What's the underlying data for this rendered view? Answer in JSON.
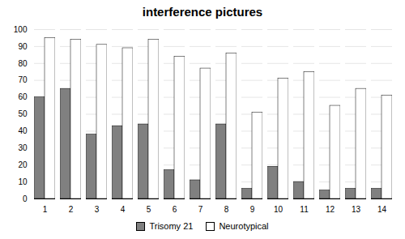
{
  "chart_data": {
    "type": "bar",
    "title": "interference pictures",
    "categories": [
      1,
      2,
      3,
      4,
      5,
      6,
      7,
      8,
      9,
      10,
      11,
      12,
      13,
      14
    ],
    "series": [
      {
        "name": "Trisomy 21",
        "color": "#808080",
        "values": [
          60,
          65,
          38,
          43,
          44,
          17,
          11,
          44,
          6,
          19,
          10,
          5,
          6,
          6
        ]
      },
      {
        "name": "Neurotypical",
        "color": "#ffffff",
        "values": [
          95,
          94,
          91,
          89,
          94,
          84,
          77,
          86,
          51,
          71,
          75,
          55,
          65,
          61
        ]
      }
    ],
    "ylim": [
      0,
      100
    ],
    "yticks": [
      0,
      10,
      20,
      30,
      40,
      50,
      60,
      70,
      80,
      90,
      100
    ],
    "grid": true,
    "legend": "bottom"
  }
}
